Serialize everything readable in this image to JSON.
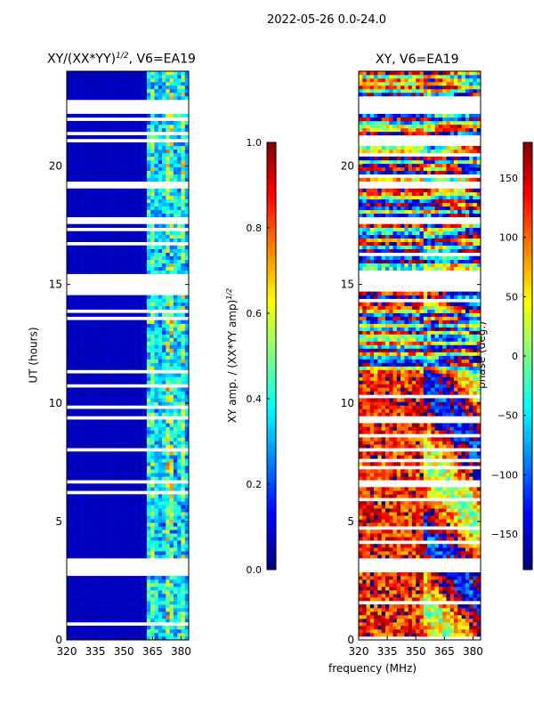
{
  "chart_data": [
    {
      "type": "heatmap",
      "title": "XY/(XX*YY)^1/2, V6=EA19",
      "title_main": "XY/(XX*YY)",
      "title_exp": "1/2",
      "title_tail": ", V6=EA19",
      "xlabel": "frequency (MHz)",
      "ylabel": "UT (hours)",
      "xlim": [
        320,
        384
      ],
      "ylim": [
        0,
        24
      ],
      "xticks": [
        320,
        335,
        350,
        365,
        380
      ],
      "yticks": [
        0,
        5,
        10,
        15,
        20
      ],
      "colorbar": {
        "label": "XY amp. / (XX*YY amp)",
        "label_exp": "1/2",
        "range": [
          0,
          1
        ],
        "ticks": [
          "0.0",
          "0.2",
          "0.4",
          "0.6",
          "0.8",
          "1.0"
        ],
        "tick_values": [
          0,
          0.2,
          0.4,
          0.6,
          0.8,
          1.0
        ],
        "cmap": "jet"
      },
      "description_values": {
        "low_band_MHz": [
          320,
          362
        ],
        "low_band_value": 0.05,
        "high_band_MHz": [
          362,
          384
        ],
        "high_band_range": [
          0.1,
          0.65
        ]
      }
    },
    {
      "type": "heatmap",
      "title": "XY, V6=EA19",
      "xlabel": "frequency (MHz)",
      "xlim": [
        320,
        384
      ],
      "ylim": [
        0,
        24
      ],
      "xticks": [
        320,
        335,
        350,
        365,
        380
      ],
      "yticks": [
        0,
        5,
        10,
        15,
        20
      ],
      "colorbar": {
        "label": "phase (deg.)",
        "range": [
          -180,
          180
        ],
        "ticks": [
          "150",
          "100",
          "50",
          "0",
          "−50",
          "−100",
          "−150"
        ],
        "tick_values": [
          150,
          100,
          50,
          0,
          -50,
          -100,
          -150
        ],
        "cmap": "jet"
      }
    }
  ],
  "flagged_hours": [
    [
      22.2,
      22.75
    ],
    [
      17.45,
      17.8
    ],
    [
      14.65,
      15.35
    ],
    [
      7.85,
      8.05
    ],
    [
      2.85,
      3.35
    ],
    [
      23.6,
      23.7
    ],
    [
      21.0,
      21.05
    ],
    [
      19.2,
      19.3
    ],
    [
      16.3,
      16.35
    ],
    [
      12.8,
      12.85
    ],
    [
      9.3,
      9.35
    ],
    [
      6.6,
      6.7
    ],
    [
      4.1,
      4.2
    ],
    [
      1.3,
      1.35
    ]
  ],
  "suptitle": "2022-05-26 0.0-24.0",
  "shared_xlabel": "frequency (MHz)"
}
